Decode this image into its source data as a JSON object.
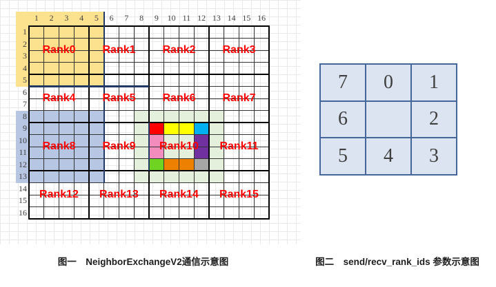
{
  "figure1": {
    "caption": "图一　NeighborExchangeV2通信示意图",
    "grid": {
      "cols": 16,
      "rows": 16,
      "col_labels": [
        "1",
        "2",
        "3",
        "4",
        "5",
        "6",
        "7",
        "8",
        "9",
        "10",
        "11",
        "12",
        "13",
        "14",
        "15",
        "16"
      ],
      "row_labels": [
        "1",
        "2",
        "3",
        "4",
        "5",
        "6",
        "7",
        "8",
        "9",
        "10",
        "11",
        "12",
        "13",
        "14",
        "15",
        "16"
      ],
      "rank_labels": [
        "Rank0",
        "Rank1",
        "Rank2",
        "Rank3",
        "Rank4",
        "Rank5",
        "Rank6",
        "Rank7",
        "Rank8",
        "Rank9",
        "Rank10",
        "Rank11",
        "Rank12",
        "Rank13",
        "Rank14",
        "Rank15"
      ],
      "rank_label_color": "#ff0000",
      "highlights": [
        {
          "name": "rank0-halo-yellow",
          "color": "#fce28f",
          "col_start": -1,
          "row_start": -1,
          "col_end": 5,
          "row_end": 5
        },
        {
          "name": "rank8-halo-blue",
          "color": "#b7c6e3",
          "col_start": -1,
          "row_start": 7,
          "col_end": 5,
          "row_end": 13
        },
        {
          "name": "rank10-halo-green",
          "color": "#e4efdc",
          "col_start": 7,
          "row_start": 7,
          "col_end": 13,
          "row_end": 13
        }
      ],
      "colored_cells": [
        {
          "name": "cell-red",
          "color": "#ff0000",
          "col": 8,
          "row": 8,
          "colspan": 1,
          "rowspan": 1
        },
        {
          "name": "cell-yellow",
          "color": "#ffff00",
          "col": 9,
          "row": 8,
          "colspan": 2,
          "rowspan": 1
        },
        {
          "name": "cell-cyan",
          "color": "#00b0f0",
          "col": 11,
          "row": 8,
          "colspan": 1,
          "rowspan": 1
        },
        {
          "name": "cell-pink",
          "color": "#f28cbc",
          "col": 8,
          "row": 9,
          "colspan": 1,
          "rowspan": 2
        },
        {
          "name": "cell-purple",
          "color": "#7030a0",
          "col": 11,
          "row": 9,
          "colspan": 1,
          "rowspan": 2
        },
        {
          "name": "cell-green",
          "color": "#6ed321",
          "col": 8,
          "row": 11,
          "colspan": 1,
          "rowspan": 1
        },
        {
          "name": "cell-orange",
          "color": "#ee8000",
          "col": 9,
          "row": 11,
          "colspan": 2,
          "rowspan": 1
        },
        {
          "name": "cell-gray",
          "color": "#a6a6a6",
          "col": 11,
          "row": 11,
          "colspan": 1,
          "rowspan": 1
        }
      ],
      "halo_border_color": "#1f3864",
      "halo_border_lines": [
        {
          "orient": "v",
          "col": 5,
          "row_start": -1,
          "row_end": 13
        },
        {
          "orient": "h",
          "row": 5,
          "col_start": 0,
          "col_end": 8
        },
        {
          "orient": "v",
          "col": 8,
          "row_start": 8,
          "row_end": 12
        }
      ],
      "gridline_color": "#333333",
      "block_border_color": "#000000"
    }
  },
  "figure2": {
    "caption": "图二　send/recv_rank_ids 参数示意图",
    "table": {
      "rows": [
        [
          "7",
          "0",
          "1"
        ],
        [
          "6",
          "",
          "2"
        ],
        [
          "5",
          "4",
          "3"
        ]
      ],
      "cell_bg": "#dbe4f0",
      "border_color": "#44669b"
    }
  }
}
